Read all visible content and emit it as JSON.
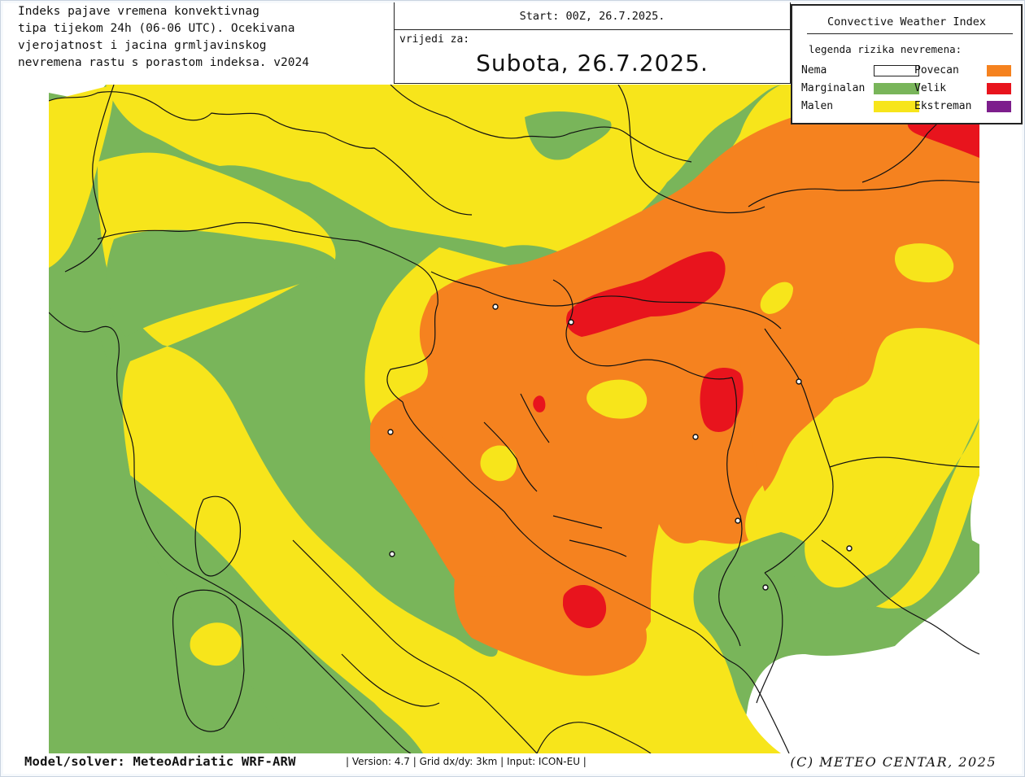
{
  "description": "Indeks pajave vremena konvektivnag\ntipa tijekom 24h (06-06 UTC). Ocekivana\nvjerojatnost i jacina grmljavinskog\nnevremena rastu s porastom indeksa. v2024",
  "header": {
    "start": "Start: 00Z, 26.7.2025.",
    "valid_label": "vrijedi za:",
    "date": "Subota, 26.7.2025."
  },
  "legend": {
    "title": "Convective Weather Index",
    "subtitle": "legenda rizika nevremena:",
    "items": [
      {
        "label": "Nema",
        "color": "#ffffff"
      },
      {
        "label": "Marginalan",
        "color": "#79b55a"
      },
      {
        "label": "Malen",
        "color": "#f7e51b"
      },
      {
        "label": "Povecan",
        "color": "#f5821f"
      },
      {
        "label": "Velik",
        "color": "#e8141d"
      },
      {
        "label": "Ekstreman",
        "color": "#7d1e8c"
      }
    ]
  },
  "footer": {
    "model": "Model/solver: MeteoAdriatic WRF-ARW",
    "meta": "| Version: 4.7 | Grid dx/dy: 3km | Input: ICON-EU |",
    "copyright": "(C) METEO CENTAR, 2025"
  }
}
